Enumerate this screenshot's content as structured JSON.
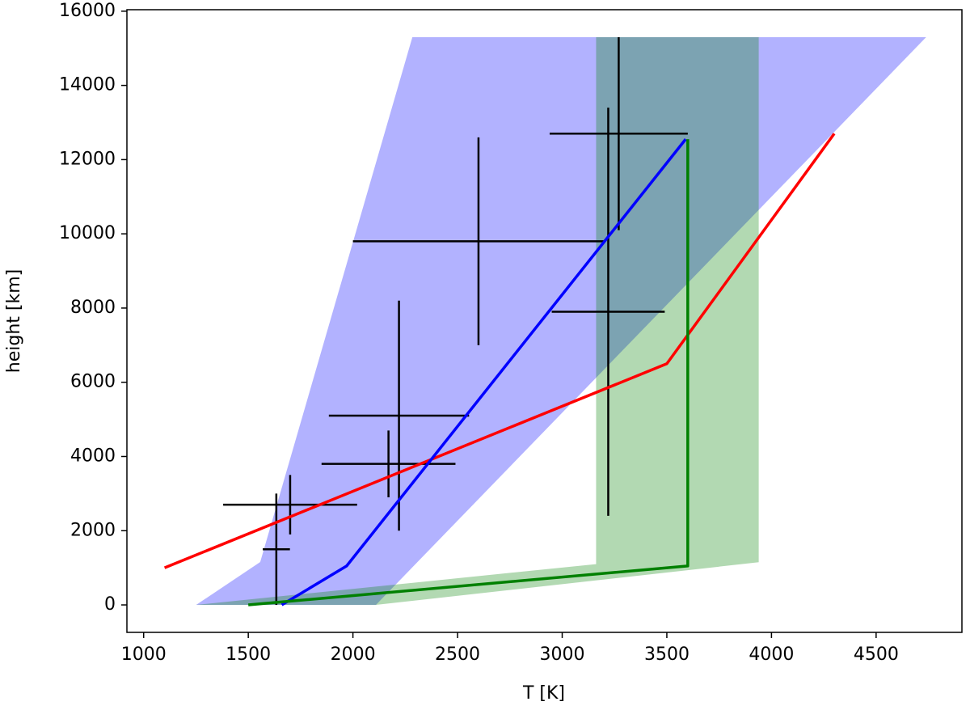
{
  "chart_data": {
    "type": "line",
    "xlabel": "T [K]",
    "ylabel": "height [km]",
    "xlim": [
      920,
      4910
    ],
    "ylim": [
      -740,
      16040
    ],
    "xticks": [
      1000,
      1500,
      2000,
      2500,
      3000,
      3500,
      4000,
      4500
    ],
    "yticks": [
      0,
      2000,
      4000,
      6000,
      8000,
      10000,
      12000,
      14000,
      16000
    ],
    "areas": [
      {
        "color": "#0000ff",
        "alpha": 0.3,
        "x": [
          1251,
          1557,
          2284,
          4739,
          2110
        ],
        "y": [
          0,
          1155,
          15300,
          15300,
          0
        ]
      },
      {
        "color": "#008000",
        "alpha": 0.3,
        "x": [
          1250,
          3162,
          3162,
          3939,
          3939,
          2110
        ],
        "y": [
          0,
          1100,
          15300,
          15300,
          1150,
          0
        ]
      }
    ],
    "lines": [
      {
        "color": "#ff0000",
        "x": [
          1100,
          3500,
          4300
        ],
        "y": [
          1000,
          6500,
          12700
        ]
      },
      {
        "color": "#0000ff",
        "x": [
          1660,
          1970,
          3590
        ],
        "y": [
          0,
          1050,
          12550
        ]
      },
      {
        "color": "#008000",
        "x": [
          1500,
          3600,
          3600
        ],
        "y": [
          0,
          1050,
          12550
        ]
      }
    ],
    "errorbars": {
      "color": "#000000",
      "x": [
        1634,
        1700,
        2170,
        2220,
        2600,
        3220,
        3270
      ],
      "y": [
        1500,
        2700,
        3800,
        5100,
        9800,
        7900,
        12700
      ],
      "xerr": [
        65,
        320,
        320,
        335,
        600,
        270,
        330
      ],
      "yerr": [
        1500,
        800,
        900,
        3100,
        2800,
        5500,
        2600
      ]
    }
  }
}
